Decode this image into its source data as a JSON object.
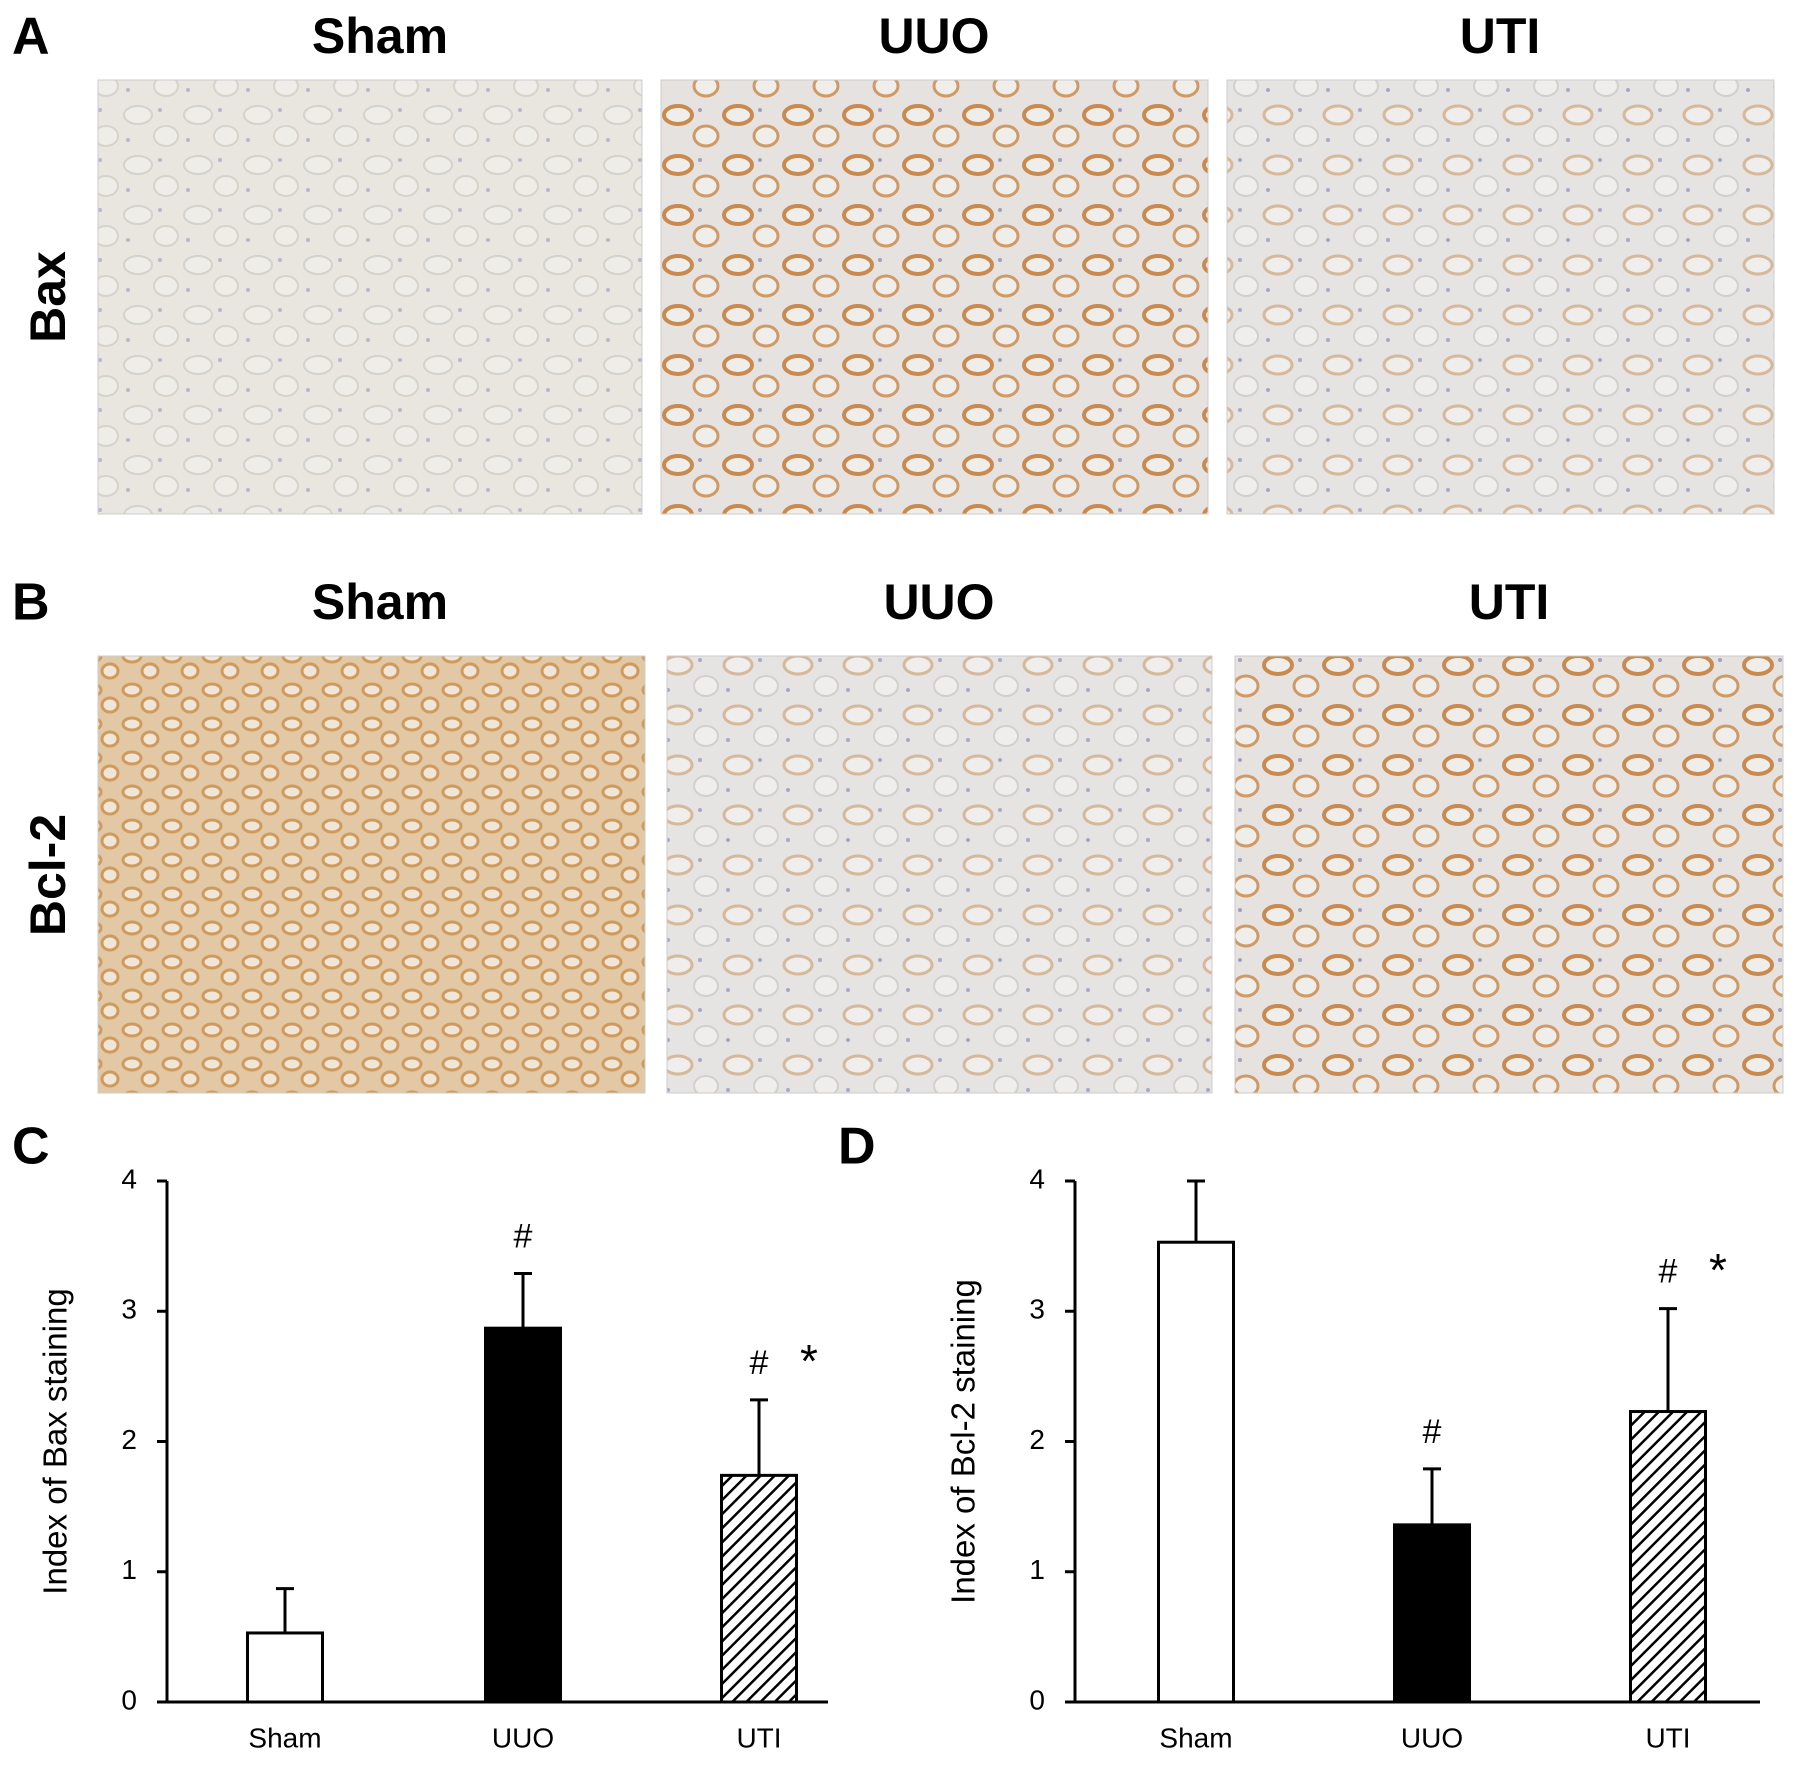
{
  "panel_labels": [
    "A",
    "B",
    "C",
    "D"
  ],
  "image_rows": [
    {
      "label": "Bax",
      "columns": [
        "Sham",
        "UUO",
        "UTI"
      ]
    },
    {
      "label": "Bcl-2",
      "columns": [
        "Sham",
        "UUO",
        "UTI"
      ]
    }
  ],
  "chart_data": [
    {
      "type": "bar",
      "categories": [
        "Sham",
        "UUO",
        "UTI"
      ],
      "values": [
        0.53,
        2.87,
        1.74
      ],
      "errors": [
        0.34,
        0.42,
        0.58
      ],
      "bar_styles": [
        "open",
        "solid",
        "hatched"
      ],
      "markers": [
        null,
        [
          "#"
        ],
        [
          "#",
          "*"
        ]
      ],
      "ylabel": "Index of Bax staining",
      "ylim": [
        0,
        4
      ],
      "yticks": [
        0,
        1,
        2,
        3,
        4
      ]
    },
    {
      "type": "bar",
      "categories": [
        "Sham",
        "UUO",
        "UTI"
      ],
      "values": [
        3.53,
        1.36,
        2.23
      ],
      "errors": [
        0.47,
        0.43,
        0.79
      ],
      "bar_styles": [
        "open",
        "solid",
        "hatched"
      ],
      "markers": [
        null,
        [
          "#"
        ],
        [
          "#",
          "*"
        ]
      ],
      "ylabel": "Index of Bcl-2 staining",
      "ylim": [
        0,
        4
      ],
      "yticks": [
        0,
        1,
        2,
        3,
        4
      ]
    }
  ]
}
